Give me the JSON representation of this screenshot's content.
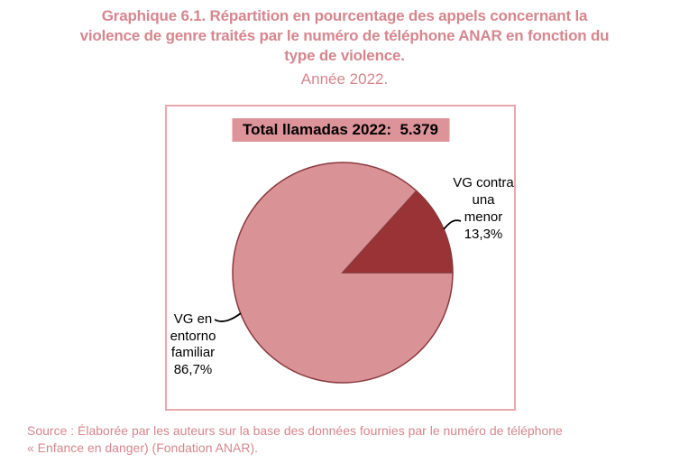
{
  "title": {
    "lines": [
      "Graphique 6.1. Répartition en pourcentage des appels concernant la",
      "violence de genre traités par le numéro de téléphone ANAR en fonction du",
      "type de violence."
    ],
    "subtitle": "Année 2022.",
    "color": "#d6868d"
  },
  "chart_box": {
    "border_color": "#e9a8ac",
    "total_label": "Total llamadas 2022:  5.379",
    "total_label_bg": "#dc939a"
  },
  "chart_data": {
    "type": "pie",
    "title": "Total llamadas 2022: 5.379",
    "total_calls_2022": "5.379",
    "start_angle_deg": 0,
    "direction": "clockwise",
    "legend_position": "callout-labels",
    "outline_color": "#8a3a3f",
    "slices": [
      {
        "label": "VG en entorno familiar",
        "pct": 86.7,
        "pct_display": "86,7%",
        "color": "#d99296"
      },
      {
        "label": "VG contra una menor",
        "pct": 13.3,
        "pct_display": "13,3%",
        "color": "#993335"
      }
    ]
  },
  "callouts": {
    "right": {
      "lines": [
        "VG contra",
        "una",
        "menor",
        "13,3%"
      ]
    },
    "left": {
      "lines": [
        "VG en",
        "entorno",
        "familiar",
        "86,7%"
      ]
    }
  },
  "source": {
    "lines": [
      "Source : Élaborée par les auteurs sur la base des données fournies par le numéro de téléphone",
      "« Enfance en danger) (Fondation ANAR)."
    ],
    "color": "#d6868d"
  }
}
